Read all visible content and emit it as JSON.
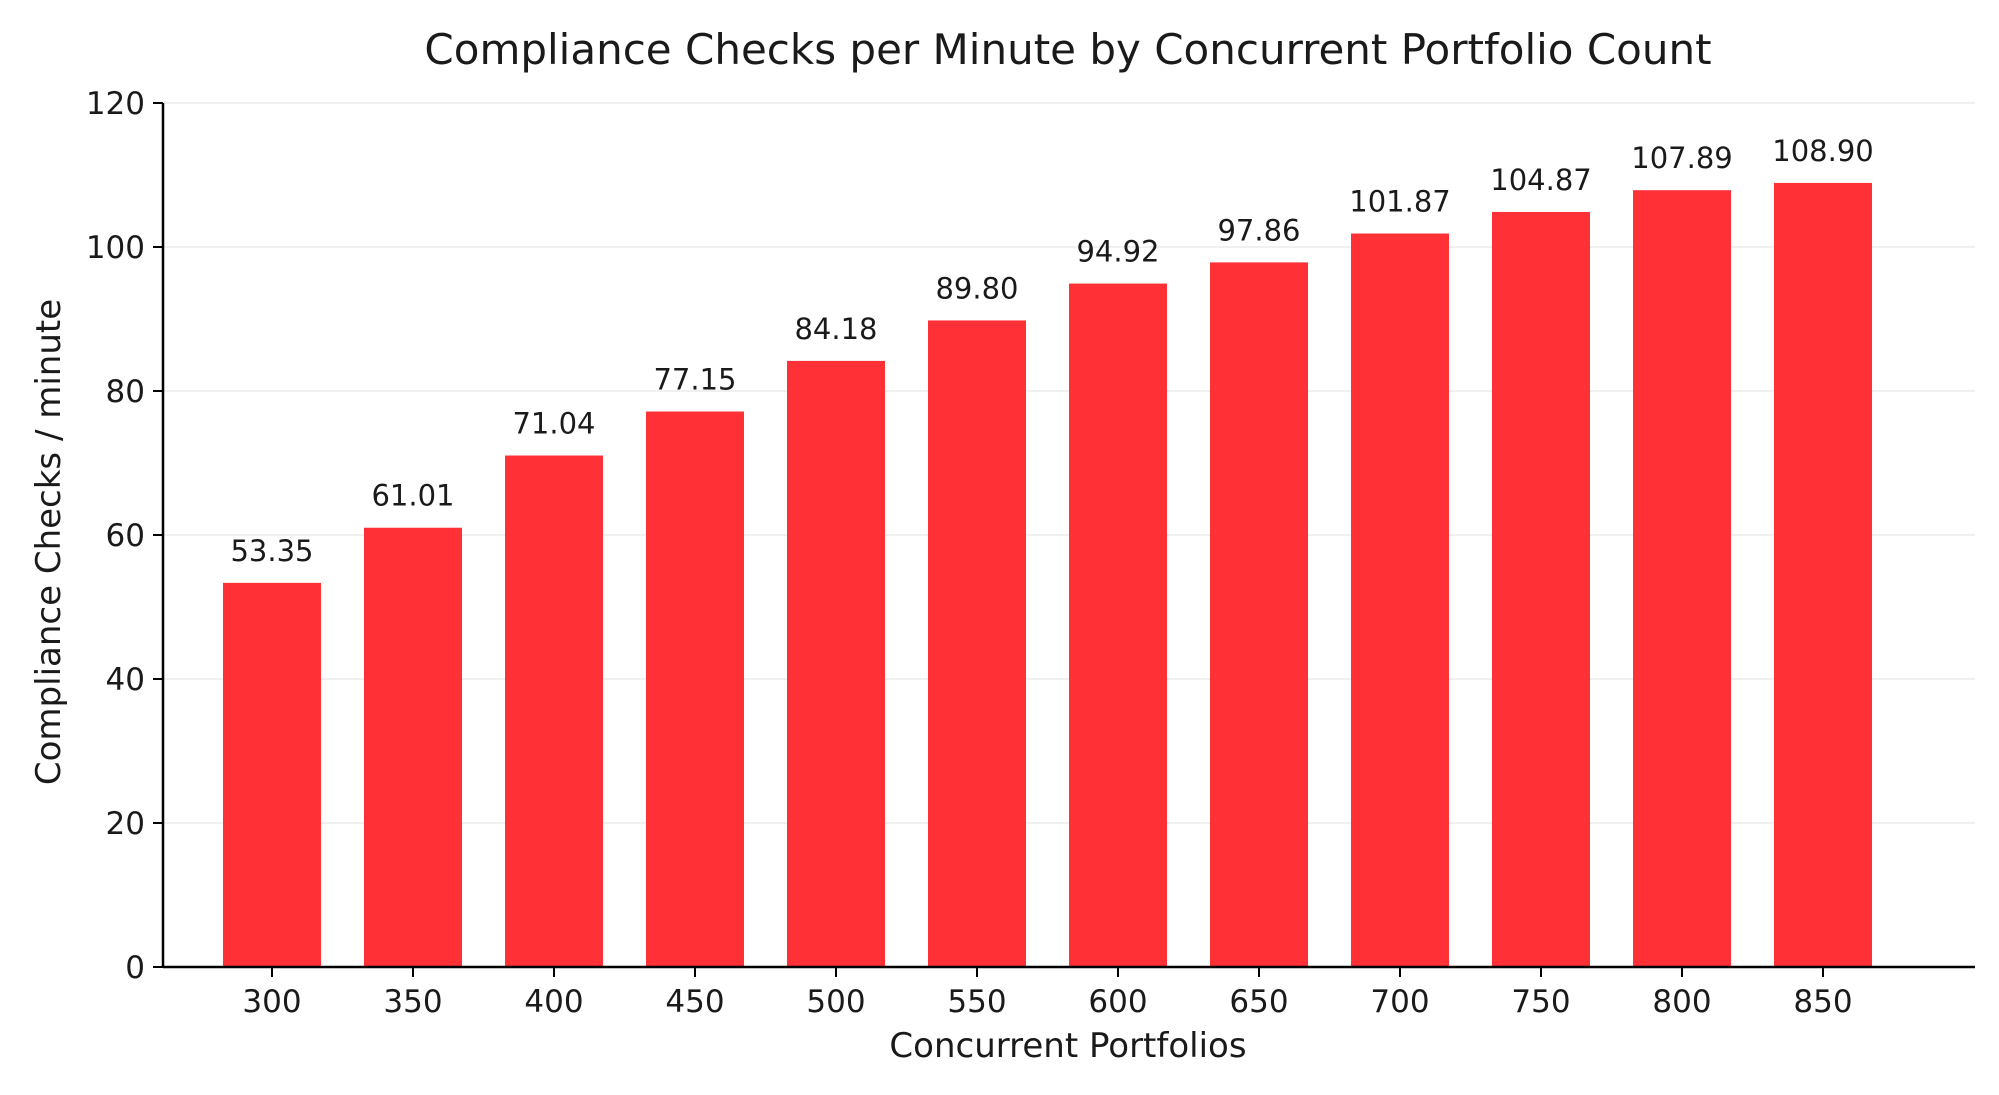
{
  "chart_data": {
    "type": "bar",
    "title": "Compliance Checks per Minute by Concurrent Portfolio Count",
    "xlabel": "Concurrent Portfolios",
    "ylabel": "Compliance Checks / minute",
    "categories": [
      "300",
      "350",
      "400",
      "450",
      "500",
      "550",
      "600",
      "650",
      "700",
      "750",
      "800",
      "850"
    ],
    "values": [
      53.35,
      61.01,
      71.04,
      77.15,
      84.18,
      89.8,
      94.92,
      97.86,
      101.87,
      104.87,
      107.89,
      108.9
    ],
    "value_labels": [
      "53.35",
      "61.01",
      "71.04",
      "77.15",
      "84.18",
      "89.80",
      "94.92",
      "97.86",
      "101.87",
      "104.87",
      "107.89",
      "108.90"
    ],
    "ylim": [
      0,
      120
    ],
    "yticks": [
      0,
      20,
      40,
      60,
      80,
      100,
      120
    ],
    "grid": "horizontal",
    "legend": "none",
    "bar_color": "#ff3036"
  }
}
